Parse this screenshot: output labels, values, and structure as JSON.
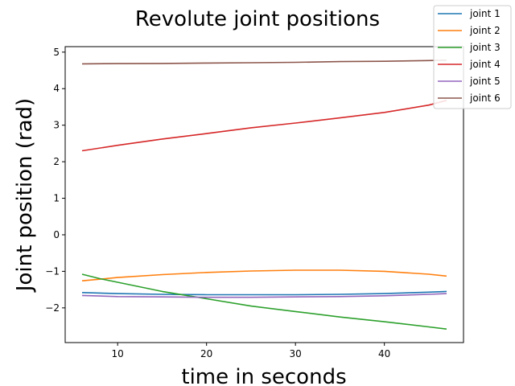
{
  "chart_data": {
    "type": "line",
    "title": "Revolute joint positions",
    "xlabel": "time in seconds",
    "ylabel": "Joint position (rad)",
    "xlim": [
      4.1,
      48.9
    ],
    "ylim": [
      -2.95,
      5.15
    ],
    "xticks": [
      10,
      20,
      30,
      40
    ],
    "yticks": [
      -2,
      -1,
      0,
      1,
      2,
      3,
      4,
      5
    ],
    "grid": false,
    "legend_position": "top-right",
    "series": [
      {
        "name": "joint 1",
        "color": "#1f77b4",
        "x": [
          6,
          10,
          15,
          20,
          25,
          30,
          35,
          40,
          45,
          47
        ],
        "y": [
          -1.58,
          -1.61,
          -1.63,
          -1.64,
          -1.64,
          -1.64,
          -1.63,
          -1.61,
          -1.57,
          -1.55
        ]
      },
      {
        "name": "joint 2",
        "color": "#ff7f0e",
        "x": [
          6,
          10,
          15,
          20,
          25,
          30,
          35,
          40,
          45,
          47
        ],
        "y": [
          -1.26,
          -1.17,
          -1.09,
          -1.03,
          -0.99,
          -0.97,
          -0.97,
          -1.0,
          -1.08,
          -1.13
        ]
      },
      {
        "name": "joint 3",
        "color": "#2ca02c",
        "x": [
          6,
          8,
          10,
          15,
          20,
          25,
          30,
          35,
          40,
          45,
          47
        ],
        "y": [
          -1.08,
          -1.2,
          -1.3,
          -1.55,
          -1.75,
          -1.95,
          -2.1,
          -2.25,
          -2.38,
          -2.52,
          -2.58
        ]
      },
      {
        "name": "joint 4",
        "color": "#d62728",
        "x": [
          6,
          10,
          15,
          20,
          25,
          30,
          35,
          40,
          45,
          47
        ],
        "y": [
          2.3,
          2.45,
          2.62,
          2.77,
          2.93,
          3.06,
          3.2,
          3.35,
          3.55,
          3.68
        ]
      },
      {
        "name": "joint 5",
        "color": "#9467bd",
        "x": [
          6,
          10,
          15,
          20,
          25,
          30,
          35,
          40,
          45,
          47
        ],
        "y": [
          -1.66,
          -1.69,
          -1.7,
          -1.71,
          -1.71,
          -1.7,
          -1.69,
          -1.67,
          -1.63,
          -1.61
        ]
      },
      {
        "name": "joint 6",
        "color": "#8c564b",
        "x": [
          6,
          10,
          15,
          20,
          25,
          30,
          35,
          40,
          45,
          47
        ],
        "y": [
          4.68,
          4.685,
          4.69,
          4.7,
          4.71,
          4.72,
          4.74,
          4.75,
          4.77,
          4.78
        ]
      }
    ]
  }
}
